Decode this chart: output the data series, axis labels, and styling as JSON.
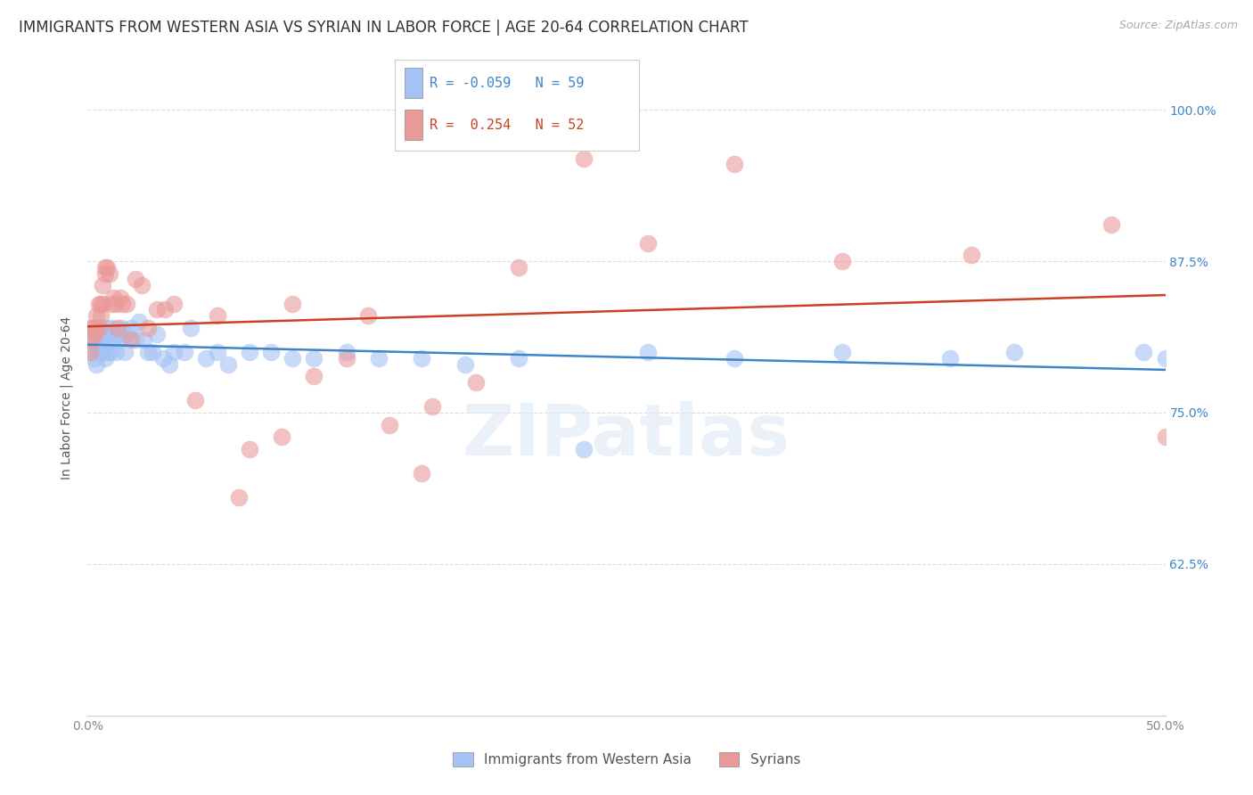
{
  "title": "IMMIGRANTS FROM WESTERN ASIA VS SYRIAN IN LABOR FORCE | AGE 20-64 CORRELATION CHART",
  "source": "Source: ZipAtlas.com",
  "ylabel": "In Labor Force | Age 20-64",
  "xlim": [
    0.0,
    0.5
  ],
  "ylim": [
    0.5,
    1.025
  ],
  "xticks": [
    0.0,
    0.1,
    0.2,
    0.3,
    0.4,
    0.5
  ],
  "xticklabels": [
    "0.0%",
    "",
    "",
    "",
    "",
    "50.0%"
  ],
  "yticks": [
    0.625,
    0.75,
    0.875,
    1.0
  ],
  "yticklabels": [
    "62.5%",
    "75.0%",
    "87.5%",
    "100.0%"
  ],
  "legend_blue_r": "-0.059",
  "legend_blue_n": "59",
  "legend_pink_r": "0.254",
  "legend_pink_n": "52",
  "legend_label_blue": "Immigrants from Western Asia",
  "legend_label_pink": "Syrians",
  "blue_color": "#a4c2f4",
  "pink_color": "#ea9999",
  "trendline_blue_color": "#3d85c8",
  "trendline_pink_color": "#cc4125",
  "blue_x": [
    0.001,
    0.002,
    0.002,
    0.003,
    0.003,
    0.004,
    0.004,
    0.005,
    0.005,
    0.006,
    0.006,
    0.007,
    0.007,
    0.008,
    0.008,
    0.009,
    0.009,
    0.01,
    0.01,
    0.011,
    0.012,
    0.013,
    0.014,
    0.015,
    0.016,
    0.017,
    0.018,
    0.02,
    0.022,
    0.024,
    0.026,
    0.028,
    0.03,
    0.032,
    0.035,
    0.038,
    0.04,
    0.045,
    0.048,
    0.055,
    0.06,
    0.065,
    0.075,
    0.085,
    0.095,
    0.105,
    0.12,
    0.135,
    0.155,
    0.175,
    0.2,
    0.23,
    0.26,
    0.3,
    0.35,
    0.4,
    0.43,
    0.49,
    0.5
  ],
  "blue_y": [
    0.82,
    0.815,
    0.8,
    0.81,
    0.795,
    0.805,
    0.79,
    0.815,
    0.8,
    0.81,
    0.82,
    0.8,
    0.81,
    0.795,
    0.815,
    0.82,
    0.8,
    0.81,
    0.8,
    0.82,
    0.81,
    0.8,
    0.815,
    0.81,
    0.82,
    0.8,
    0.815,
    0.82,
    0.81,
    0.825,
    0.81,
    0.8,
    0.8,
    0.815,
    0.795,
    0.79,
    0.8,
    0.8,
    0.82,
    0.795,
    0.8,
    0.79,
    0.8,
    0.8,
    0.795,
    0.795,
    0.8,
    0.795,
    0.795,
    0.79,
    0.795,
    0.72,
    0.8,
    0.795,
    0.8,
    0.795,
    0.8,
    0.8,
    0.795
  ],
  "pink_x": [
    0.001,
    0.002,
    0.002,
    0.003,
    0.003,
    0.004,
    0.004,
    0.005,
    0.005,
    0.006,
    0.006,
    0.007,
    0.007,
    0.008,
    0.008,
    0.009,
    0.01,
    0.011,
    0.012,
    0.013,
    0.014,
    0.015,
    0.016,
    0.018,
    0.02,
    0.022,
    0.025,
    0.028,
    0.032,
    0.036,
    0.04,
    0.05,
    0.06,
    0.075,
    0.09,
    0.105,
    0.12,
    0.14,
    0.16,
    0.18,
    0.2,
    0.23,
    0.26,
    0.3,
    0.35,
    0.41,
    0.475,
    0.5,
    0.13,
    0.155,
    0.095,
    0.07
  ],
  "pink_y": [
    0.8,
    0.82,
    0.81,
    0.815,
    0.82,
    0.83,
    0.82,
    0.84,
    0.82,
    0.84,
    0.83,
    0.855,
    0.84,
    0.87,
    0.865,
    0.87,
    0.865,
    0.84,
    0.845,
    0.84,
    0.82,
    0.845,
    0.84,
    0.84,
    0.81,
    0.86,
    0.855,
    0.82,
    0.835,
    0.835,
    0.84,
    0.76,
    0.83,
    0.72,
    0.73,
    0.78,
    0.795,
    0.74,
    0.755,
    0.775,
    0.87,
    0.96,
    0.89,
    0.955,
    0.875,
    0.88,
    0.905,
    0.73,
    0.83,
    0.7,
    0.84,
    0.68
  ],
  "watermark_text": "ZIPatlas",
  "background_color": "#ffffff",
  "grid_color": "#dddddd"
}
